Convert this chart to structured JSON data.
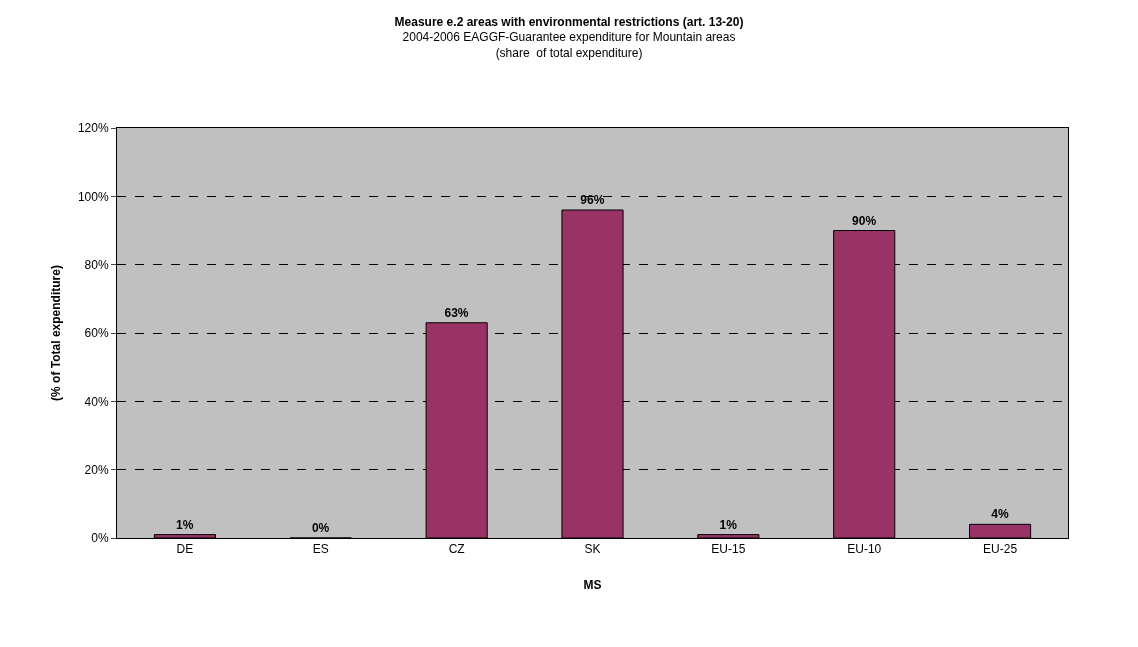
{
  "chart_data": {
    "type": "bar",
    "title": "Measure e.2 areas with environmental restrictions (art. 13-20)",
    "subtitle": "2004-2006 EAGGF-Guarantee expenditure for Mountain areas\n(share  of total expenditure)",
    "xlabel": "MS",
    "ylabel": "(% of Total expenditure)",
    "categories": [
      "DE",
      "ES",
      "CZ",
      "SK",
      "EU-15",
      "EU-10",
      "EU-25"
    ],
    "values": [
      1,
      0,
      63,
      96,
      1,
      90,
      4
    ],
    "color": "#993366",
    "value_labels": [
      "1%",
      "0%",
      "63%",
      "96%",
      "1%",
      "90%",
      "4%"
    ],
    "ylim": [
      0,
      120
    ],
    "yticks": [
      {
        "value": 0,
        "label": "0%"
      },
      {
        "value": 20,
        "label": "20%"
      },
      {
        "value": 40,
        "label": "40%"
      },
      {
        "value": 60,
        "label": "60%"
      },
      {
        "value": 80,
        "label": "80%"
      },
      {
        "value": 100,
        "label": "100%"
      },
      {
        "value": 120,
        "label": "120%"
      }
    ],
    "grid": "y"
  }
}
